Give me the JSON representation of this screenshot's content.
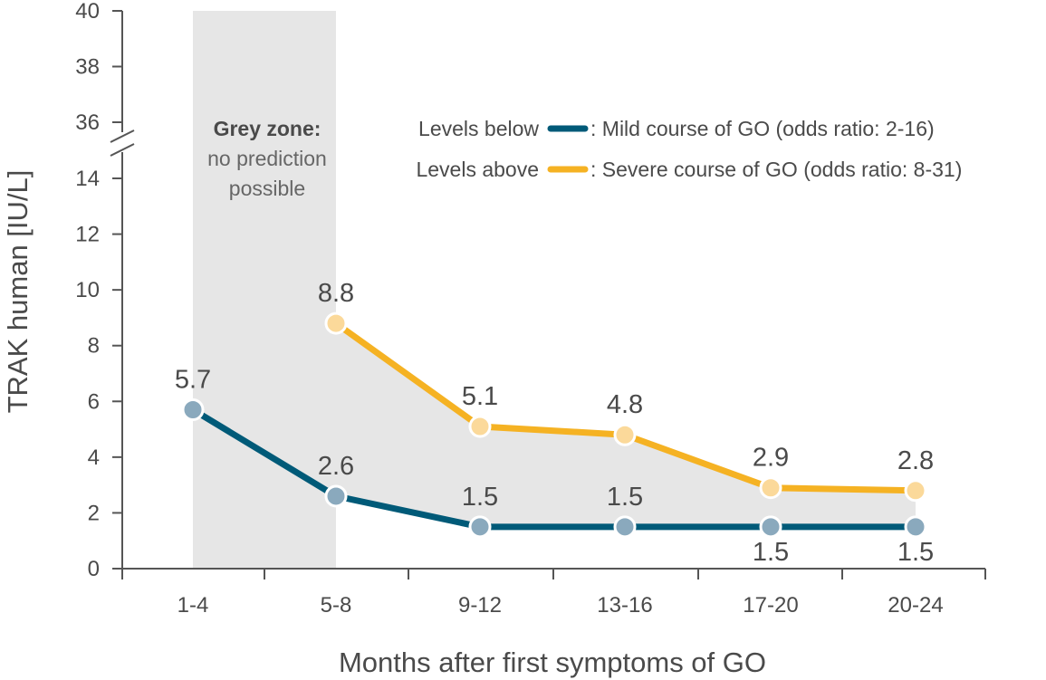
{
  "chart_data": {
    "type": "line",
    "xlabel": "Months after first symptoms of GO",
    "ylabel": "TRAK human [IU/L]",
    "categories": [
      "1-4",
      "5-8",
      "9-12",
      "13-16",
      "17-20",
      "20-24"
    ],
    "y_ticks_lower": [
      "0",
      "2",
      "4",
      "6",
      "8",
      "10",
      "12",
      "14"
    ],
    "y_ticks_upper": [
      "36",
      "38",
      "40"
    ],
    "y_range_lower": [
      0,
      14
    ],
    "y_range_upper": [
      36,
      40
    ],
    "y_axis_break": true,
    "grid": false,
    "series": [
      {
        "name": "Levels below",
        "legend": ": Mild course of GO (odds ratio: 2-16)",
        "color": "#005a78",
        "marker_color": "#8aa9bd",
        "values": [
          5.7,
          2.6,
          1.5,
          1.5,
          1.5,
          1.5
        ],
        "labels": [
          "5.7",
          "2.6",
          "1.5",
          "1.5",
          "1.5",
          "1.5"
        ]
      },
      {
        "name": "Levels above",
        "legend": ": Severe course of GO (odds ratio: 8-31)",
        "color": "#f5b223",
        "marker_color": "#fbd99a",
        "values": [
          null,
          8.8,
          5.1,
          4.8,
          2.9,
          2.8
        ],
        "labels": [
          "",
          "8.8",
          "5.1",
          "4.8",
          "2.9",
          "2.8"
        ]
      }
    ],
    "grey_zone": {
      "title": "Grey zone:",
      "line1": "no prediction",
      "line2": "possible",
      "color": "#e6e6e6"
    },
    "legend_position": "top-right"
  }
}
